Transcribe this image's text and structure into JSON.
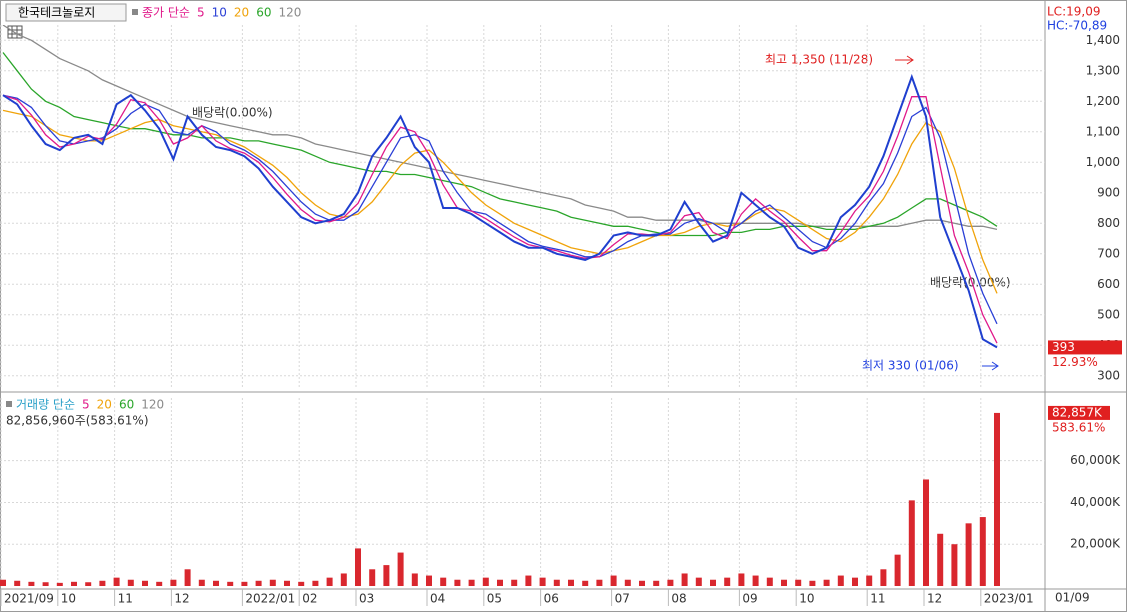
{
  "title": "한국테크놀로지",
  "lc_label": "LC:19,09",
  "hc_label": "HC:-70,89",
  "chart_data": [
    {
      "type": "line",
      "legend_prefix": "종가 단순",
      "categories": [
        "2021/09",
        null,
        null,
        null,
        "10",
        null,
        null,
        null,
        "11",
        null,
        null,
        null,
        "12",
        null,
        null,
        null,
        null,
        "2022/01",
        null,
        null,
        null,
        "02",
        null,
        null,
        null,
        "03",
        null,
        null,
        null,
        null,
        "04",
        null,
        null,
        null,
        "05",
        null,
        null,
        null,
        "06",
        null,
        null,
        null,
        null,
        "07",
        null,
        null,
        null,
        "08",
        null,
        null,
        null,
        null,
        "09",
        null,
        null,
        null,
        "10",
        null,
        null,
        null,
        null,
        "11",
        null,
        null,
        null,
        "12",
        null,
        null,
        null,
        "2023/01",
        null
      ],
      "close": {
        "color": "#1f3fcf",
        "values": [
          1220,
          1190,
          1120,
          1060,
          1040,
          1080,
          1090,
          1060,
          1190,
          1220,
          1170,
          1110,
          1010,
          1150,
          1090,
          1050,
          1040,
          1020,
          980,
          920,
          870,
          820,
          800,
          810,
          830,
          900,
          1020,
          1080,
          1150,
          1050,
          1000,
          850,
          850,
          830,
          800,
          770,
          740,
          720,
          720,
          700,
          690,
          680,
          700,
          760,
          770,
          760,
          760,
          780,
          870,
          800,
          740,
          760,
          900,
          860,
          820,
          790,
          720,
          700,
          720,
          820,
          860,
          920,
          1020,
          1150,
          1280,
          1150,
          820,
          700,
          580,
          420,
          393
        ]
      },
      "series": [
        {
          "name": "5",
          "color": "#e0198a",
          "values": [
            1220,
            1205,
            1155,
            1090,
            1050,
            1060,
            1085,
            1075,
            1125,
            1205,
            1195,
            1140,
            1060,
            1080,
            1120,
            1070,
            1045,
            1030,
            1000,
            950,
            895,
            845,
            810,
            805,
            820,
            865,
            960,
            1050,
            1115,
            1100,
            1025,
            925,
            850,
            840,
            815,
            785,
            755,
            730,
            720,
            710,
            695,
            685,
            690,
            730,
            765,
            765,
            760,
            770,
            825,
            835,
            770,
            750,
            830,
            880,
            840,
            805,
            755,
            710,
            710,
            770,
            840,
            890,
            970,
            1085,
            1215,
            1215,
            985,
            760,
            640,
            500,
            407
          ]
        },
        {
          "name": "10",
          "color": "#2a3fd6",
          "values": [
            1220,
            1210,
            1180,
            1120,
            1070,
            1060,
            1070,
            1080,
            1110,
            1160,
            1190,
            1170,
            1100,
            1090,
            1120,
            1100,
            1060,
            1040,
            1010,
            970,
            920,
            870,
            830,
            810,
            810,
            840,
            920,
            1000,
            1080,
            1090,
            1070,
            970,
            900,
            840,
            830,
            800,
            770,
            740,
            725,
            715,
            705,
            690,
            690,
            710,
            740,
            760,
            765,
            765,
            800,
            815,
            800,
            770,
            800,
            840,
            860,
            820,
            780,
            740,
            720,
            750,
            800,
            870,
            930,
            1030,
            1150,
            1180,
            1080,
            890,
            700,
            570,
            470
          ]
        },
        {
          "name": "20",
          "color": "#f0a30a",
          "values": [
            1170,
            1160,
            1150,
            1120,
            1090,
            1080,
            1070,
            1070,
            1090,
            1110,
            1130,
            1140,
            1120,
            1110,
            1100,
            1090,
            1070,
            1050,
            1020,
            990,
            950,
            900,
            860,
            830,
            820,
            830,
            870,
            930,
            990,
            1030,
            1040,
            1000,
            950,
            900,
            860,
            830,
            800,
            780,
            760,
            740,
            720,
            710,
            700,
            710,
            720,
            740,
            760,
            760,
            770,
            790,
            800,
            790,
            800,
            830,
            850,
            840,
            810,
            780,
            750,
            740,
            770,
            820,
            880,
            960,
            1060,
            1130,
            1100,
            980,
            820,
            680,
            570
          ]
        },
        {
          "name": "60",
          "color": "#2aa52a",
          "values": [
            1360,
            1300,
            1240,
            1200,
            1180,
            1150,
            1140,
            1130,
            1120,
            1110,
            1110,
            1100,
            1090,
            1090,
            1080,
            1080,
            1080,
            1070,
            1070,
            1060,
            1050,
            1040,
            1020,
            1000,
            990,
            980,
            970,
            970,
            960,
            960,
            950,
            940,
            930,
            920,
            900,
            880,
            870,
            860,
            850,
            840,
            820,
            810,
            800,
            790,
            790,
            780,
            770,
            760,
            760,
            760,
            760,
            770,
            770,
            780,
            780,
            790,
            790,
            790,
            780,
            780,
            780,
            790,
            800,
            820,
            850,
            880,
            880,
            860,
            840,
            820,
            790
          ]
        },
        {
          "name": "120",
          "color": "#8a8a8a",
          "values": [
            1450,
            1420,
            1400,
            1370,
            1340,
            1320,
            1300,
            1270,
            1250,
            1230,
            1210,
            1190,
            1170,
            1150,
            1140,
            1130,
            1120,
            1110,
            1100,
            1090,
            1090,
            1080,
            1060,
            1050,
            1040,
            1030,
            1020,
            1010,
            1000,
            990,
            980,
            970,
            960,
            950,
            940,
            930,
            920,
            910,
            900,
            890,
            880,
            860,
            850,
            840,
            820,
            820,
            810,
            810,
            810,
            810,
            800,
            800,
            800,
            800,
            800,
            800,
            800,
            790,
            790,
            790,
            790,
            790,
            790,
            790,
            800,
            810,
            810,
            800,
            790,
            790,
            780
          ]
        }
      ],
      "ylim": [
        260,
        1450
      ],
      "yticks": [
        300,
        400,
        500,
        600,
        700,
        800,
        900,
        {
          "value": 1000,
          "label": "1,000"
        },
        {
          "value": 1100,
          "label": "1,100"
        },
        {
          "value": 1200,
          "label": "1,200"
        },
        {
          "value": 1300,
          "label": "1,300"
        },
        {
          "value": 1400,
          "label": "1,400"
        }
      ],
      "grid": true,
      "last_price": 393,
      "last_change": "12.93%",
      "annotations": [
        "배당락(0.00%)",
        "배당락(0.00%)",
        "최고 1,350 (11/28)",
        "최저 330 (01/06)"
      ],
      "x_end_label": "01/09"
    },
    {
      "type": "bar",
      "legend_prefix": "거래량 단순",
      "ma_legend": [
        {
          "name": "5",
          "color": "#e0198a"
        },
        {
          "name": "20",
          "color": "#f0a30a"
        },
        {
          "name": "60",
          "color": "#2aa52a"
        },
        {
          "name": "120",
          "color": "#8a8a8a"
        }
      ],
      "volume_label": "82,856,960주(583.61%)",
      "color": "#d9272e",
      "values": [
        3000,
        2500,
        2000,
        1800,
        1500,
        2000,
        1800,
        2500,
        4000,
        3000,
        2500,
        2000,
        3000,
        8000,
        3000,
        2500,
        2000,
        2000,
        2500,
        3000,
        2500,
        2000,
        2500,
        4000,
        6000,
        18000,
        8000,
        10000,
        16000,
        6000,
        5000,
        4000,
        3000,
        3000,
        4000,
        3000,
        3000,
        5000,
        4000,
        3000,
        3000,
        2500,
        3000,
        5000,
        3000,
        2500,
        2500,
        3000,
        6000,
        4000,
        3000,
        4000,
        6000,
        5000,
        4000,
        3000,
        3000,
        2500,
        3000,
        5000,
        4000,
        5000,
        8000,
        15000,
        41000,
        51000,
        25000,
        20000,
        30000,
        33000,
        82857
      ],
      "ylim": [
        0,
        90000
      ],
      "yticks": [
        {
          "value": 20000,
          "label": "20,000K"
        },
        {
          "value": 40000,
          "label": "40,000K"
        },
        {
          "value": 60000,
          "label": "60,000K"
        }
      ],
      "grid": true,
      "last_value": 82857,
      "last_value_label": "82,857K",
      "last_change": "583.61%"
    }
  ]
}
